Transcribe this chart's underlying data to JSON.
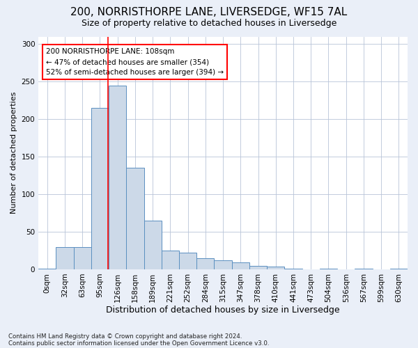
{
  "title": "200, NORRISTHORPE LANE, LIVERSEDGE, WF15 7AL",
  "subtitle": "Size of property relative to detached houses in Liversedge",
  "xlabel": "Distribution of detached houses by size in Liversedge",
  "ylabel": "Number of detached properties",
  "footnote1": "Contains HM Land Registry data © Crown copyright and database right 2024.",
  "footnote2": "Contains public sector information licensed under the Open Government Licence v3.0.",
  "bins": [
    "0sqm",
    "32sqm",
    "63sqm",
    "95sqm",
    "126sqm",
    "158sqm",
    "189sqm",
    "221sqm",
    "252sqm",
    "284sqm",
    "315sqm",
    "347sqm",
    "378sqm",
    "410sqm",
    "441sqm",
    "473sqm",
    "504sqm",
    "536sqm",
    "567sqm",
    "599sqm",
    "630sqm"
  ],
  "values": [
    1,
    30,
    30,
    215,
    245,
    135,
    65,
    25,
    22,
    15,
    12,
    9,
    5,
    4,
    1,
    0,
    1,
    0,
    1,
    0,
    1
  ],
  "bar_color": "#ccd9e8",
  "bar_edge_color": "#5a8fc0",
  "reference_line_x": 3.47,
  "reference_line_color": "red",
  "annotation_text": "200 NORRISTHORPE LANE: 108sqm\n← 47% of detached houses are smaller (354)\n52% of semi-detached houses are larger (394) →",
  "annotation_box_color": "white",
  "annotation_box_edge_color": "red",
  "ylim": [
    0,
    310
  ],
  "yticks": [
    0,
    50,
    100,
    150,
    200,
    250,
    300
  ],
  "bg_color": "#eaeff8",
  "plot_bg_color": "white",
  "grid_color": "#b8c4d8",
  "title_fontsize": 11,
  "subtitle_fontsize": 9,
  "xlabel_fontsize": 9,
  "ylabel_fontsize": 8,
  "tick_fontsize": 7.5,
  "annotation_fontsize": 7.5
}
